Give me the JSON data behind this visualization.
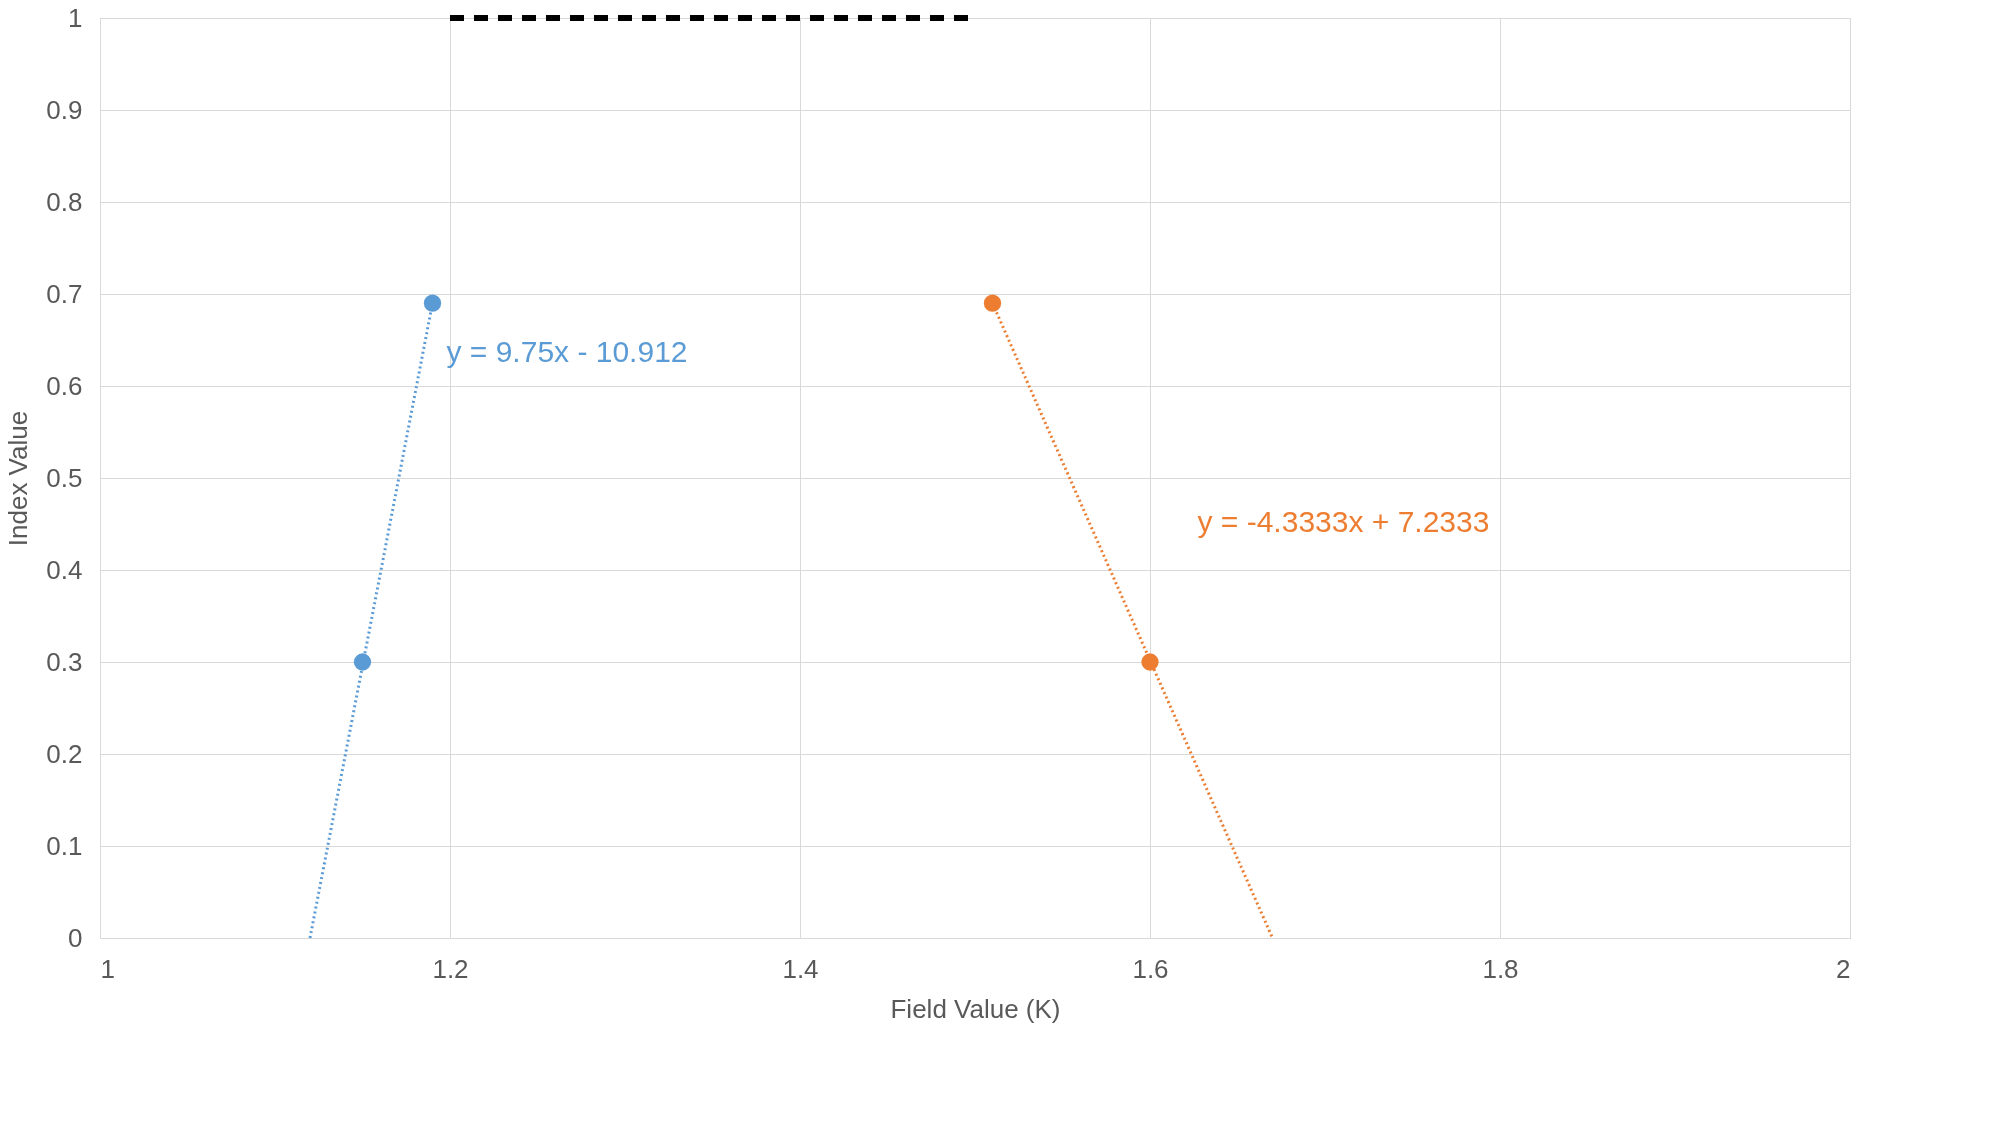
{
  "chart_data": {
    "type": "scatter",
    "xlabel": "Field Value (K)",
    "ylabel": "Index Value",
    "xlim": [
      1,
      2
    ],
    "xticks": [
      1,
      1.2,
      1.4,
      1.6,
      1.8,
      2
    ],
    "ylim": [
      0,
      1
    ],
    "yticks": [
      0,
      0.1,
      0.2,
      0.3,
      0.4,
      0.5,
      0.6,
      0.7,
      0.8,
      0.9,
      1
    ],
    "grid": true,
    "marker": "circle",
    "series": [
      {
        "color": "#5b9bd5",
        "x": [
          1.15,
          1.19
        ],
        "values": [
          0.3,
          0.69
        ]
      },
      {
        "color": "#ed7d31",
        "x": [
          1.51,
          1.6
        ],
        "values": [
          0.69,
          0.3
        ]
      },
      {
        "type": "line",
        "color": "#5b9bd5",
        "line_style": "dotted",
        "marker": "none",
        "x": [
          1.12,
          1.19
        ],
        "values": [
          0,
          0.69
        ]
      },
      {
        "type": "line",
        "color": "#ed7d31",
        "line_style": "dotted",
        "marker": "none",
        "x": [
          1.51,
          1.67
        ],
        "values": [
          0.69,
          0
        ]
      },
      {
        "type": "line",
        "color": "#000000",
        "line_style": "dashed",
        "marker": "none",
        "x": [
          1.2,
          1.5
        ],
        "values": [
          1,
          1
        ]
      }
    ],
    "annotations": [
      "y = 9.75x - 10.912",
      "y = -4.3333x + 7.2333"
    ]
  }
}
